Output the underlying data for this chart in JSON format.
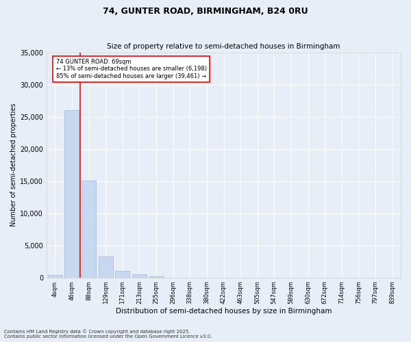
{
  "title1": "74, GUNTER ROAD, BIRMINGHAM, B24 0RU",
  "title2": "Size of property relative to semi-detached houses in Birmingham",
  "xlabel": "Distribution of semi-detached houses by size in Birmingham",
  "ylabel": "Number of semi-detached properties",
  "annotation_line1": "74 GUNTER ROAD: 69sqm",
  "annotation_line2": "← 13% of semi-detached houses are smaller (6,198)",
  "annotation_line3": "85% of semi-detached houses are larger (39,461) →",
  "categories": [
    "4sqm",
    "46sqm",
    "88sqm",
    "129sqm",
    "171sqm",
    "213sqm",
    "255sqm",
    "296sqm",
    "338sqm",
    "380sqm",
    "422sqm",
    "463sqm",
    "505sqm",
    "547sqm",
    "589sqm",
    "630sqm",
    "672sqm",
    "714sqm",
    "756sqm",
    "797sqm",
    "839sqm"
  ],
  "values": [
    350,
    26000,
    15100,
    3300,
    1050,
    450,
    150,
    0,
    0,
    0,
    0,
    0,
    0,
    0,
    0,
    0,
    0,
    0,
    0,
    0,
    0
  ],
  "bar_color": "#c8d8f0",
  "bar_edge_color": "#a0b8d8",
  "vline_x": 1.5,
  "vline_color": "red",
  "ylim": [
    0,
    35000
  ],
  "yticks": [
    0,
    5000,
    10000,
    15000,
    20000,
    25000,
    30000,
    35000
  ],
  "background_color": "#e8eef8",
  "plot_bg_color": "#e8eef8",
  "grid_color": "#ffffff",
  "footnote1": "Contains HM Land Registry data © Crown copyright and database right 2025.",
  "footnote2": "Contains public sector information licensed under the Open Government Licence v3.0."
}
